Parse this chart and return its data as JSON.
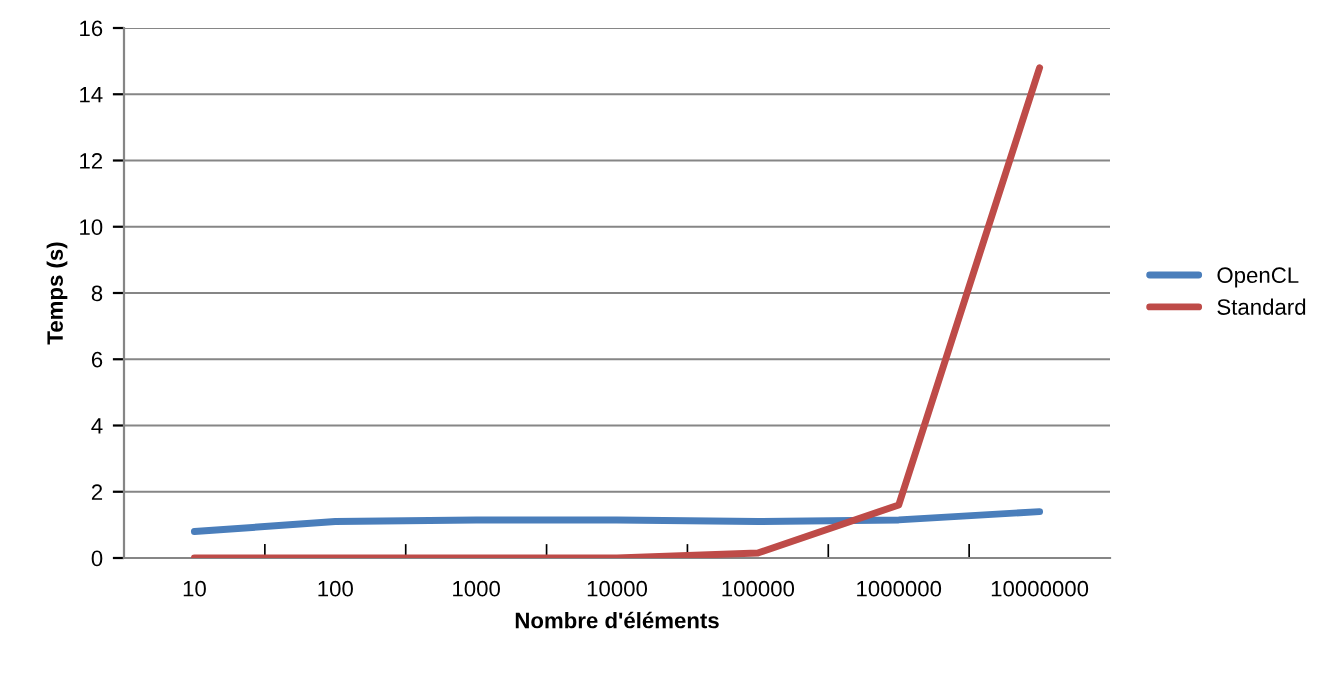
{
  "chart_data": {
    "type": "line",
    "xlabel": "Nombre d'éléments",
    "ylabel": "Temps (s)",
    "categories": [
      "10",
      "100",
      "1000",
      "10000",
      "100000",
      "1000000",
      "10000000"
    ],
    "series": [
      {
        "name": "OpenCL",
        "color": "#4a7ebb",
        "values": [
          0.8,
          1.1,
          1.15,
          1.15,
          1.1,
          1.15,
          1.4
        ]
      },
      {
        "name": "Standard",
        "color": "#be4b48",
        "values": [
          0,
          0,
          0,
          0,
          0.15,
          1.6,
          14.8
        ]
      }
    ],
    "ylim": [
      0,
      16
    ],
    "yticks": [
      0,
      2,
      4,
      6,
      8,
      10,
      12,
      14,
      16
    ],
    "grid": "y",
    "legend": "right",
    "marker": "none",
    "line_style": "solid"
  }
}
